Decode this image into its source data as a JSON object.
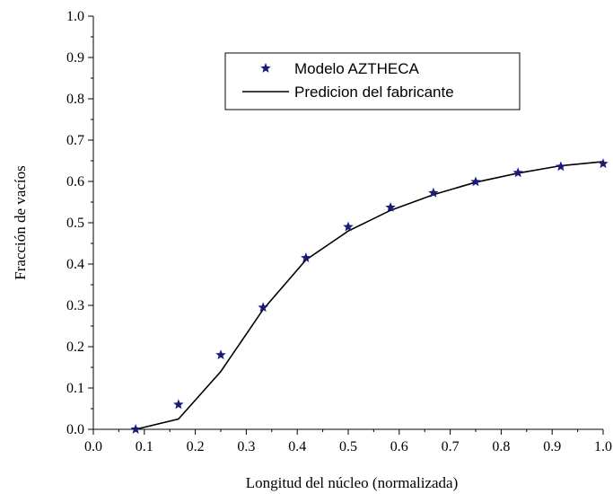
{
  "chart_data": {
    "type": "line",
    "xlabel": "Longitud del núcleo (normalizada)",
    "ylabel": "Fracción de vacíos",
    "xlim": [
      0.0,
      1.0
    ],
    "ylim": [
      0.0,
      1.0
    ],
    "x_ticks": [
      "0.0",
      "0.1",
      "0.2",
      "0.3",
      "0.4",
      "0.5",
      "0.6",
      "0.7",
      "0.8",
      "0.9",
      "1.0"
    ],
    "y_ticks": [
      "0.0",
      "0.1",
      "0.2",
      "0.3",
      "0.4",
      "0.5",
      "0.6",
      "0.7",
      "0.8",
      "0.9",
      "1.0"
    ],
    "grid": false,
    "legend_position": "top-center",
    "series": [
      {
        "name": "Modelo AZTHECA",
        "style": "scatter",
        "marker": "star-icon",
        "color": "#1a1a7a",
        "x": [
          0.083,
          0.167,
          0.25,
          0.333,
          0.417,
          0.5,
          0.583,
          0.667,
          0.75,
          0.833,
          0.917,
          1.0
        ],
        "y": [
          0.0,
          0.06,
          0.18,
          0.295,
          0.415,
          0.49,
          0.537,
          0.572,
          0.599,
          0.621,
          0.636,
          0.643
        ]
      },
      {
        "name": "Predicion del fabricante",
        "style": "line",
        "color": "#000000",
        "x": [
          0.083,
          0.167,
          0.25,
          0.333,
          0.417,
          0.5,
          0.583,
          0.667,
          0.75,
          0.833,
          0.917,
          1.0
        ],
        "y": [
          0.0,
          0.025,
          0.14,
          0.29,
          0.41,
          0.48,
          0.53,
          0.568,
          0.598,
          0.62,
          0.638,
          0.648
        ]
      }
    ]
  }
}
